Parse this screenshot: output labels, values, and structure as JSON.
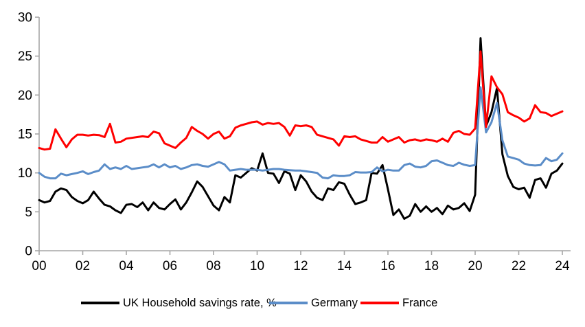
{
  "chart_data": {
    "type": "line",
    "title": "",
    "frequency": "quarterly",
    "axis_color_hex": "#A6A6A6",
    "x_axis": {
      "tick_labels": [
        "00",
        "02",
        "04",
        "06",
        "08",
        "10",
        "12",
        "14",
        "16",
        "18",
        "20",
        "22",
        "24"
      ],
      "start_year": 2000,
      "end_year": 2024
    },
    "y_axis": {
      "min": 0,
      "max": 30,
      "tick_labels": [
        "0",
        "5",
        "10",
        "15",
        "20",
        "25",
        "30"
      ]
    },
    "series": [
      {
        "id": "uk",
        "name": "UK Household savings rate, %",
        "color_hex": "#000000",
        "values": [
          6.5,
          6.2,
          6.4,
          7.6,
          8.0,
          7.8,
          6.9,
          6.4,
          6.1,
          6.5,
          7.6,
          6.7,
          5.9,
          5.7,
          5.2,
          4.85,
          5.9,
          6.0,
          5.6,
          6.2,
          5.2,
          6.2,
          5.5,
          5.3,
          6.0,
          6.6,
          5.3,
          6.2,
          7.5,
          8.9,
          8.2,
          7.0,
          5.8,
          5.2,
          6.9,
          6.2,
          9.7,
          9.4,
          10.0,
          10.6,
          10.3,
          12.5,
          10.0,
          9.9,
          8.7,
          10.2,
          9.9,
          7.8,
          9.7,
          8.9,
          7.6,
          6.8,
          6.5,
          8.0,
          7.8,
          8.8,
          8.6,
          7.2,
          6.0,
          6.2,
          6.5,
          10.0,
          9.9,
          11.0,
          7.9,
          4.6,
          5.3,
          4.1,
          4.5,
          6.0,
          5.0,
          5.7,
          5.0,
          5.5,
          4.7,
          5.8,
          5.3,
          5.5,
          6.1,
          5.1,
          7.2,
          27.3,
          16.0,
          17.8,
          20.9,
          12.4,
          9.6,
          8.2,
          7.9,
          8.1,
          6.8,
          9.1,
          9.3,
          8.1,
          9.9,
          10.3,
          11.2
        ]
      },
      {
        "id": "germany",
        "name": "Germany",
        "color_hex": "#5B8DC8",
        "values": [
          10.0,
          9.5,
          9.3,
          9.3,
          9.9,
          9.7,
          9.85,
          10.0,
          10.2,
          9.85,
          10.1,
          10.3,
          11.1,
          10.5,
          10.7,
          10.5,
          10.9,
          10.5,
          10.6,
          10.7,
          10.8,
          11.1,
          10.7,
          11.1,
          10.7,
          10.9,
          10.5,
          10.7,
          11.0,
          11.1,
          10.9,
          10.8,
          11.1,
          11.4,
          11.1,
          10.3,
          10.4,
          10.5,
          10.4,
          10.4,
          10.4,
          10.3,
          10.4,
          10.5,
          10.5,
          10.4,
          10.35,
          10.3,
          10.3,
          10.2,
          10.1,
          10.0,
          9.4,
          9.3,
          9.7,
          9.6,
          9.6,
          9.7,
          10.1,
          10.05,
          10.05,
          10.1,
          10.7,
          10.2,
          10.4,
          10.3,
          10.3,
          11.0,
          11.2,
          10.8,
          10.7,
          10.9,
          11.5,
          11.6,
          11.3,
          11.0,
          10.9,
          11.3,
          11.05,
          10.9,
          11.0,
          21.0,
          15.2,
          16.5,
          19.0,
          14.2,
          12.1,
          11.9,
          11.7,
          11.2,
          11.0,
          10.95,
          11.0,
          11.9,
          11.5,
          11.7,
          12.5
        ]
      },
      {
        "id": "france",
        "name": "France",
        "color_hex": "#FF0000",
        "values": [
          13.2,
          13.0,
          13.1,
          15.6,
          14.4,
          13.3,
          14.3,
          14.9,
          14.9,
          14.8,
          14.9,
          14.85,
          14.6,
          16.3,
          13.9,
          14.0,
          14.4,
          14.5,
          14.6,
          14.7,
          14.6,
          15.3,
          15.1,
          13.8,
          13.5,
          13.2,
          13.9,
          14.5,
          15.9,
          15.4,
          15.0,
          14.4,
          15.0,
          15.3,
          14.4,
          14.7,
          15.8,
          16.1,
          16.3,
          16.5,
          16.6,
          16.2,
          16.4,
          16.3,
          16.4,
          15.9,
          14.8,
          16.1,
          16.0,
          16.1,
          15.9,
          14.9,
          14.7,
          14.5,
          14.3,
          13.5,
          14.7,
          14.6,
          14.7,
          14.3,
          14.1,
          13.9,
          13.9,
          14.6,
          14.0,
          14.3,
          14.6,
          13.9,
          14.2,
          14.3,
          14.1,
          14.3,
          14.2,
          14.0,
          14.4,
          14.0,
          15.15,
          15.4,
          15.0,
          14.9,
          15.7,
          25.6,
          15.9,
          22.4,
          21.0,
          20.1,
          17.8,
          17.4,
          17.1,
          16.6,
          17.0,
          18.7,
          17.8,
          17.7,
          17.3,
          17.6,
          17.9
        ]
      }
    ],
    "legend_position": "bottom"
  }
}
